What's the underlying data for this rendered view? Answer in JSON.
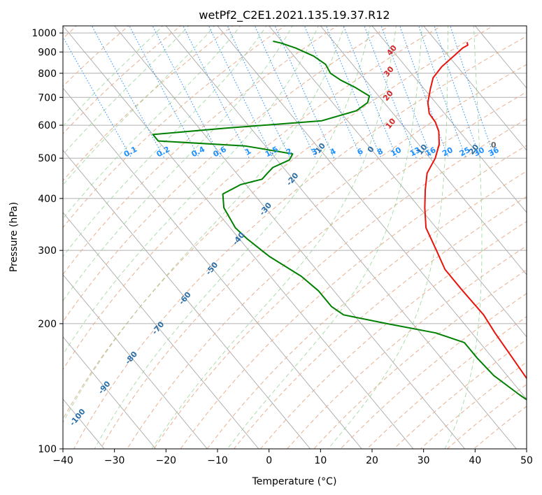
{
  "chart_data": {
    "type": "line",
    "subtype": "skew-t log-p diagram",
    "title": "wetPf2_C2E1.2021.135.19.37.R12",
    "xlabel": "Temperature (°C)",
    "ylabel": "Pressure (hPa)",
    "xlim": [
      -40,
      50
    ],
    "ylim": [
      1040,
      100
    ],
    "y_scale": "log",
    "grid": true,
    "x_ticks": [
      "−40",
      "−30",
      "−20",
      "−10",
      "0",
      "10",
      "20",
      "30",
      "40",
      "50"
    ],
    "y_ticks": [
      "100",
      "200",
      "300",
      "400",
      "500",
      "600",
      "700",
      "800",
      "900",
      "1000"
    ],
    "series": [
      {
        "role": "temperature",
        "color": "#e8140c",
        "points": [
          [
            35.8,
            950
          ],
          [
            35.5,
            935
          ],
          [
            34,
            920
          ],
          [
            31,
            880
          ],
          [
            27,
            830
          ],
          [
            23.5,
            780
          ],
          [
            21,
            730
          ],
          [
            18.5,
            680
          ],
          [
            17,
            640
          ],
          [
            16.8,
            610
          ],
          [
            16,
            580
          ],
          [
            14,
            540
          ],
          [
            11,
            500
          ],
          [
            7,
            460
          ],
          [
            4,
            420
          ],
          [
            1,
            380
          ],
          [
            -2,
            340
          ],
          [
            -3.6,
            300
          ],
          [
            -5,
            270
          ],
          [
            -5,
            240
          ],
          [
            -4.8,
            210
          ],
          [
            -5.5,
            190
          ],
          [
            -6,
            170
          ],
          [
            -6.6,
            150
          ],
          [
            -7.2,
            130
          ],
          [
            -8.2,
            112
          ],
          [
            -7.5,
            100
          ]
        ]
      },
      {
        "role": "dewpoint",
        "color": "#008000",
        "points": [
          [
            -1.7,
            955
          ],
          [
            -0.4,
            945
          ],
          [
            1.6,
            920
          ],
          [
            3.8,
            880
          ],
          [
            4.8,
            840
          ],
          [
            4.3,
            800
          ],
          [
            5.2,
            770
          ],
          [
            6.8,
            740
          ],
          [
            8.2,
            705
          ],
          [
            6.8,
            680
          ],
          [
            3.3,
            650
          ],
          [
            -5,
            615
          ],
          [
            -25,
            590
          ],
          [
            -40,
            570
          ],
          [
            -40,
            550
          ],
          [
            -24,
            535
          ],
          [
            -16,
            512
          ],
          [
            -17.6,
            495
          ],
          [
            -22,
            475
          ],
          [
            -24,
            460
          ],
          [
            -26,
            445
          ],
          [
            -31,
            432
          ],
          [
            -36,
            410
          ],
          [
            -38,
            380
          ],
          [
            -39,
            340
          ],
          [
            -38.5,
            320
          ],
          [
            -37,
            290
          ],
          [
            -34,
            260
          ],
          [
            -33,
            240
          ],
          [
            -33,
            220
          ],
          [
            -32,
            210
          ],
          [
            -25,
            200
          ],
          [
            -17,
            190
          ],
          [
            -13,
            180
          ],
          [
            -13,
            165
          ],
          [
            -12.6,
            150
          ],
          [
            -10.7,
            135
          ],
          [
            -9,
            125
          ],
          [
            -7,
            115
          ],
          [
            -6.4,
            105
          ],
          [
            -5.7,
            100
          ]
        ]
      }
    ],
    "dry_adiabats": {
      "color": "#e8b090",
      "label_color": "#2a6fa8",
      "labels": [
        "-100",
        "-90",
        "-80",
        "-70",
        "-60",
        "-50",
        "-40",
        "-30",
        "-20",
        "-10",
        "0",
        "10",
        "20",
        "30",
        "40"
      ]
    },
    "moist_adiabat_labels": {
      "color": "#d62728",
      "values": [
        "10",
        "20",
        "30",
        "40"
      ]
    },
    "mixing_ratio": {
      "color": "#1e90ff",
      "labels": [
        "0.1",
        "0.2",
        "0.4",
        "0.6",
        "1",
        "1.5",
        "2",
        "3",
        "4",
        "6",
        "8",
        "10",
        "13",
        "16",
        "20",
        "25",
        "30",
        "36"
      ]
    },
    "isotherms": {
      "color": "#a9a9a9"
    },
    "lcl_marker": {
      "label": "0"
    }
  }
}
